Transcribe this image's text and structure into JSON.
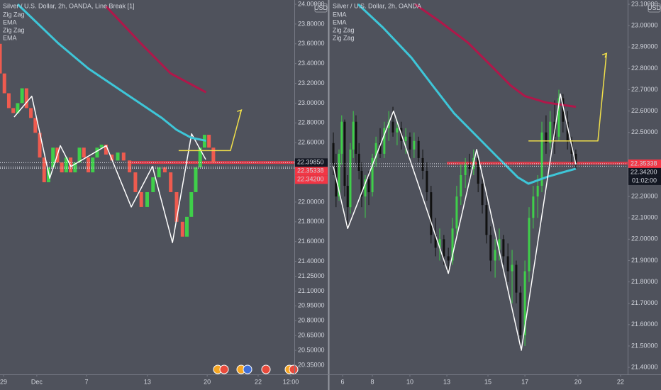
{
  "chart_data": [
    {
      "type": "candlestick",
      "title": "Silver / U.S. Dollar, 2h, OANDA, Line Break [1]",
      "currency": "USD",
      "xlim": [
        0,
        100
      ],
      "ylim": [
        20.257,
        24.043
      ],
      "yticks": [
        {
          "value": 24.0,
          "label": "24.00000"
        },
        {
          "value": 23.8,
          "label": "23.80000"
        },
        {
          "value": 23.6,
          "label": "23.60000"
        },
        {
          "value": 23.4,
          "label": "23.40000"
        },
        {
          "value": 23.2,
          "label": "23.20000"
        },
        {
          "value": 23.0,
          "label": "23.00000"
        },
        {
          "value": 22.8,
          "label": "22.80000"
        },
        {
          "value": 22.6,
          "label": "22.60000"
        },
        {
          "value": 22.0,
          "label": "22.00000"
        },
        {
          "value": 21.8,
          "label": "21.80000"
        },
        {
          "value": 21.6,
          "label": "21.60000"
        },
        {
          "value": 21.4,
          "label": "21.40000"
        },
        {
          "value": 21.25,
          "label": "21.25000"
        },
        {
          "value": 21.1,
          "label": "21.10000"
        },
        {
          "value": 20.95,
          "label": "20.95000"
        },
        {
          "value": 20.8,
          "label": "20.80000"
        },
        {
          "value": 20.65,
          "label": "20.65000"
        },
        {
          "value": 20.5,
          "label": "20.50000"
        },
        {
          "value": 20.35,
          "label": "20.35000"
        }
      ],
      "xticks": [
        {
          "value": 1.2,
          "label": "29"
        },
        {
          "value": 12.5,
          "label": "Dec"
        },
        {
          "value": 29.4,
          "label": "7"
        },
        {
          "value": 50.1,
          "label": "13"
        },
        {
          "value": 70.4,
          "label": "20"
        },
        {
          "value": 87.7,
          "label": "22"
        },
        {
          "value": 98.8,
          "label": "12:00"
        }
      ],
      "candles": {
        "up_color": "#3fcf4a",
        "down_color": "#ef5b4f",
        "x": [
          0,
          1.5,
          3,
          4.5,
          6,
          7.5,
          9,
          10.5,
          12,
          13.5,
          15,
          16.5,
          18,
          19.5,
          21,
          22.5,
          24,
          25.5,
          27,
          28.5,
          30,
          31.5,
          33,
          34.5,
          36,
          38,
          40,
          42,
          44,
          46,
          48,
          50,
          52,
          54,
          56,
          58,
          60,
          62,
          63.5,
          65,
          66.5,
          68,
          69.5,
          71,
          72.5
        ],
        "open": [
          23.6,
          23.3,
          23.1,
          22.95,
          22.9,
          23.0,
          23.15,
          22.95,
          22.85,
          22.7,
          22.45,
          22.2,
          22.35,
          22.55,
          22.4,
          22.3,
          22.45,
          22.3,
          22.4,
          22.55,
          22.45,
          22.3,
          22.45,
          22.55,
          22.58,
          22.48,
          22.42,
          22.5,
          22.42,
          22.3,
          22.1,
          21.95,
          22.1,
          22.25,
          22.35,
          22.3,
          22.1,
          21.8,
          21.65,
          21.85,
          22.1,
          22.35,
          22.55,
          22.68,
          22.55
        ],
        "close": [
          23.3,
          23.1,
          22.95,
          22.9,
          23.0,
          23.15,
          22.95,
          22.85,
          22.7,
          22.45,
          22.2,
          22.35,
          22.55,
          22.4,
          22.3,
          22.45,
          22.3,
          22.4,
          22.55,
          22.45,
          22.3,
          22.45,
          22.55,
          22.58,
          22.48,
          22.42,
          22.5,
          22.42,
          22.3,
          22.1,
          21.95,
          22.1,
          22.25,
          22.35,
          22.3,
          22.1,
          21.8,
          21.65,
          21.85,
          22.1,
          22.35,
          22.55,
          22.68,
          22.55,
          22.4
        ]
      },
      "series": [
        {
          "name": "Zig Zag",
          "color": "#ffffff",
          "x": [
            4.8,
            10.8,
            16.9,
            20.5,
            24.1,
            36.1,
            44.6,
            51.8,
            58.6,
            65.1,
            69.9
          ],
          "values": [
            22.86,
            23.07,
            22.24,
            22.57,
            22.36,
            22.57,
            21.95,
            22.36,
            21.59,
            22.69,
            22.43
          ]
        },
        {
          "name": "EMA",
          "color": "#3ec6d8",
          "x": [
            6,
            20,
            30,
            40,
            50,
            55,
            60,
            65,
            70
          ],
          "values": [
            24.0,
            23.6,
            23.35,
            23.15,
            22.95,
            22.85,
            22.73,
            22.65,
            22.62
          ]
        },
        {
          "name": "Zig Zag",
          "color": "#f1e04a",
          "x": [
            60.7,
            78.3,
            82.0
          ],
          "values": [
            22.52,
            22.52,
            22.93
          ]
        },
        {
          "name": "EMA",
          "color": "#b0174a",
          "x": [
            36,
            48,
            58,
            70
          ],
          "values": [
            23.98,
            23.6,
            23.3,
            23.11
          ]
        }
      ],
      "hline": {
        "value": 22.4,
        "x": 43.4,
        "color": "#f23645"
      },
      "price_labels": [
        {
          "value": 22.3985,
          "label": "22.39850",
          "color": "#131722"
        },
        {
          "value": 22.35338,
          "label": "22.35338",
          "color": "#f23645"
        },
        {
          "value": 22.342,
          "label": "22.34200",
          "color": "#f23645"
        }
      ]
    },
    {
      "type": "candlestick",
      "title": "Silver / U.S. Dollar, 2h, OANDA",
      "currency": "USD",
      "xlim": [
        0,
        100
      ],
      "ylim": [
        21.367,
        23.12
      ],
      "yticks": [
        {
          "value": 23.1,
          "label": "23.10000"
        },
        {
          "value": 23.0,
          "label": "23.00000"
        },
        {
          "value": 22.9,
          "label": "22.90000"
        },
        {
          "value": 22.8,
          "label": "22.80000"
        },
        {
          "value": 22.7,
          "label": "22.70000"
        },
        {
          "value": 22.6,
          "label": "22.60000"
        },
        {
          "value": 22.5,
          "label": "22.50000"
        },
        {
          "value": 22.2,
          "label": "22.20000"
        },
        {
          "value": 22.1,
          "label": "22.10000"
        },
        {
          "value": 22.0,
          "label": "22.00000"
        },
        {
          "value": 21.9,
          "label": "21.90000"
        },
        {
          "value": 21.8,
          "label": "21.80000"
        },
        {
          "value": 21.7,
          "label": "21.70000"
        },
        {
          "value": 21.6,
          "label": "21.60000"
        },
        {
          "value": 21.5,
          "label": "21.50000"
        },
        {
          "value": 21.4,
          "label": "21.40000"
        }
      ],
      "xticks": [
        {
          "value": 4.3,
          "label": "6"
        },
        {
          "value": 14.3,
          "label": "8"
        },
        {
          "value": 26.9,
          "label": "10"
        },
        {
          "value": 39.3,
          "label": "13"
        },
        {
          "value": 53.1,
          "label": "15"
        },
        {
          "value": 65.5,
          "label": "17"
        },
        {
          "value": 83.3,
          "label": "20"
        },
        {
          "value": 97.6,
          "label": "22"
        }
      ],
      "candles": {
        "up_color": "#3fcf4a",
        "down_color": "#111111",
        "x": [
          1.2,
          2.1,
          3.1,
          4.0,
          5.0,
          6.0,
          6.9,
          7.9,
          8.8,
          9.8,
          10.7,
          11.9,
          13.1,
          14.3,
          15.5,
          16.9,
          18.3,
          19.8,
          21.2,
          22.6,
          24.0,
          25.5,
          26.9,
          28.3,
          29.8,
          31.2,
          32.6,
          34.0,
          35.5,
          36.9,
          38.3,
          39.8,
          41.2,
          42.6,
          44.0,
          45.5,
          46.9,
          48.3,
          49.8,
          51.2,
          52.6,
          54.0,
          55.5,
          56.9,
          58.3,
          59.8,
          61.2,
          62.6,
          64.0,
          65.5,
          66.9,
          68.3,
          69.8,
          71.2,
          72.6,
          74.0,
          75.5,
          76.9,
          78.3,
          79.8,
          81.2,
          82.6
        ],
        "open": [
          22.45,
          22.35,
          22.2,
          22.4,
          22.55,
          22.25,
          22.15,
          22.42,
          22.55,
          22.4,
          22.32,
          22.2,
          22.28,
          22.22,
          22.38,
          22.45,
          22.4,
          22.52,
          22.55,
          22.5,
          22.52,
          22.46,
          22.48,
          22.42,
          22.46,
          22.38,
          22.32,
          22.22,
          22.02,
          21.96,
          22.0,
          21.92,
          21.9,
          22.05,
          22.2,
          22.3,
          22.35,
          22.33,
          22.38,
          22.26,
          22.16,
          22.02,
          21.9,
          21.95,
          22.0,
          21.92,
          21.85,
          21.88,
          21.75,
          21.55,
          21.85,
          22.1,
          22.2,
          22.25,
          22.5,
          22.45,
          22.55,
          22.48,
          22.66,
          22.55,
          22.46,
          22.4
        ],
        "high": [
          22.5,
          22.4,
          22.42,
          22.58,
          22.56,
          22.3,
          22.45,
          22.6,
          22.58,
          22.45,
          22.36,
          22.3,
          22.32,
          22.4,
          22.48,
          22.52,
          22.55,
          22.6,
          22.62,
          22.56,
          22.55,
          22.52,
          22.5,
          22.5,
          22.48,
          22.42,
          22.36,
          22.25,
          22.1,
          22.05,
          22.02,
          21.96,
          22.1,
          22.25,
          22.35,
          22.38,
          22.4,
          22.42,
          22.4,
          22.3,
          22.2,
          22.06,
          22.0,
          22.05,
          22.02,
          21.98,
          21.95,
          21.9,
          21.78,
          21.9,
          22.15,
          22.25,
          22.3,
          22.55,
          22.58,
          22.6,
          22.65,
          22.7,
          22.68,
          22.6,
          22.48,
          22.42
        ],
        "low": [
          22.3,
          22.15,
          22.18,
          22.35,
          22.2,
          22.06,
          22.12,
          22.38,
          22.35,
          22.28,
          22.15,
          22.1,
          22.16,
          22.2,
          22.34,
          22.38,
          22.38,
          22.46,
          22.48,
          22.44,
          22.42,
          22.4,
          22.38,
          22.38,
          22.36,
          22.28,
          22.18,
          21.98,
          21.92,
          21.9,
          21.88,
          21.84,
          21.88,
          22.02,
          22.16,
          22.24,
          22.28,
          22.3,
          22.22,
          22.12,
          21.98,
          21.85,
          21.82,
          21.9,
          21.88,
          21.8,
          21.7,
          21.7,
          21.48,
          21.5,
          21.8,
          22.05,
          22.1,
          22.22,
          22.4,
          22.42,
          22.4,
          22.46,
          22.5,
          22.42,
          22.36,
          22.33
        ],
        "close": [
          22.35,
          22.2,
          22.4,
          22.55,
          22.25,
          22.15,
          22.42,
          22.55,
          22.4,
          22.32,
          22.2,
          22.28,
          22.22,
          22.38,
          22.45,
          22.4,
          22.52,
          22.55,
          22.5,
          22.52,
          22.46,
          22.48,
          22.42,
          22.46,
          22.38,
          22.32,
          22.22,
          22.02,
          21.96,
          22.0,
          21.92,
          21.9,
          22.05,
          22.2,
          22.3,
          22.35,
          22.33,
          22.38,
          22.26,
          22.16,
          22.02,
          21.9,
          21.95,
          22.0,
          21.92,
          21.85,
          21.88,
          21.75,
          21.55,
          21.85,
          22.1,
          22.2,
          22.25,
          22.5,
          22.45,
          22.55,
          22.48,
          22.66,
          22.55,
          22.46,
          22.4,
          22.35
        ]
      },
      "series": [
        {
          "name": "EMA",
          "color": "#3ec6d8",
          "x": [
            9.5,
            17.9,
            27.4,
            34.5,
            41.7,
            48.8,
            55.9,
            63.1,
            66.7,
            72.6,
            77.4,
            82.6
          ],
          "values": [
            23.1,
            22.99,
            22.85,
            22.72,
            22.59,
            22.49,
            22.39,
            22.29,
            22.26,
            22.29,
            22.31,
            22.33
          ]
        },
        {
          "name": "EMA",
          "color": "#b0174a",
          "x": [
            28.6,
            36.9,
            46.4,
            53.6,
            60.7,
            65.5,
            72.6,
            82.6
          ],
          "values": [
            23.1,
            23.02,
            22.92,
            22.82,
            22.72,
            22.67,
            22.64,
            22.62
          ]
        },
        {
          "name": "Zig Zag",
          "color": "#ffffff",
          "x": [
            1.2,
            6.0,
            21.4,
            39.8,
            49.3,
            64.3,
            77.4,
            82.6
          ],
          "values": [
            22.34,
            22.05,
            22.6,
            21.84,
            22.42,
            21.48,
            22.68,
            22.35
          ]
        },
        {
          "name": "Zig Zag",
          "color": "#f1e04a",
          "x": [
            66.7,
            90.0,
            92.9
          ],
          "values": [
            22.46,
            22.46,
            22.87
          ]
        }
      ],
      "hline": {
        "value": 22.356,
        "x": 39.3,
        "color": "#f23645"
      },
      "price_labels": [
        {
          "value": 22.35338,
          "label": "22.35338",
          "color": "#f23645"
        },
        {
          "value": 22.342,
          "label": "22.34200",
          "color": "#131722"
        }
      ],
      "countdown": "01:02:00"
    }
  ]
}
